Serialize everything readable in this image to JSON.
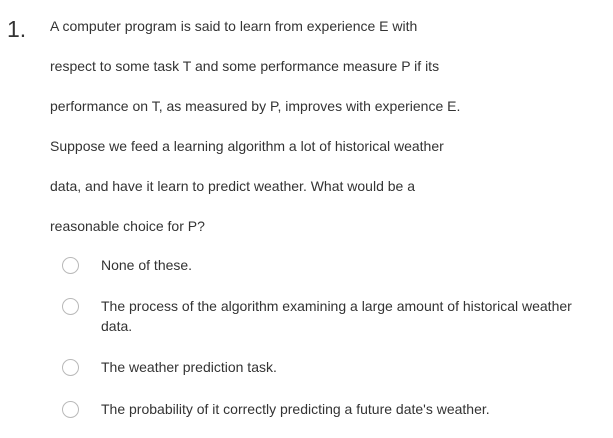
{
  "question": {
    "number": "1.",
    "lines": [
      "A computer program is said to learn from experience E with",
      "respect to some task T and some performance measure P if its",
      "performance on T, as measured by P, improves with experience E.",
      "Suppose we feed a learning algorithm a lot of historical weather",
      "data, and have it learn to predict weather. What would be a",
      "reasonable choice for P?"
    ]
  },
  "options": [
    {
      "label": "None of these."
    },
    {
      "label": "The process of the algorithm examining a large amount of historical weather data."
    },
    {
      "label": "The weather prediction task."
    },
    {
      "label": "The probability of it correctly predicting a future date's weather."
    }
  ]
}
